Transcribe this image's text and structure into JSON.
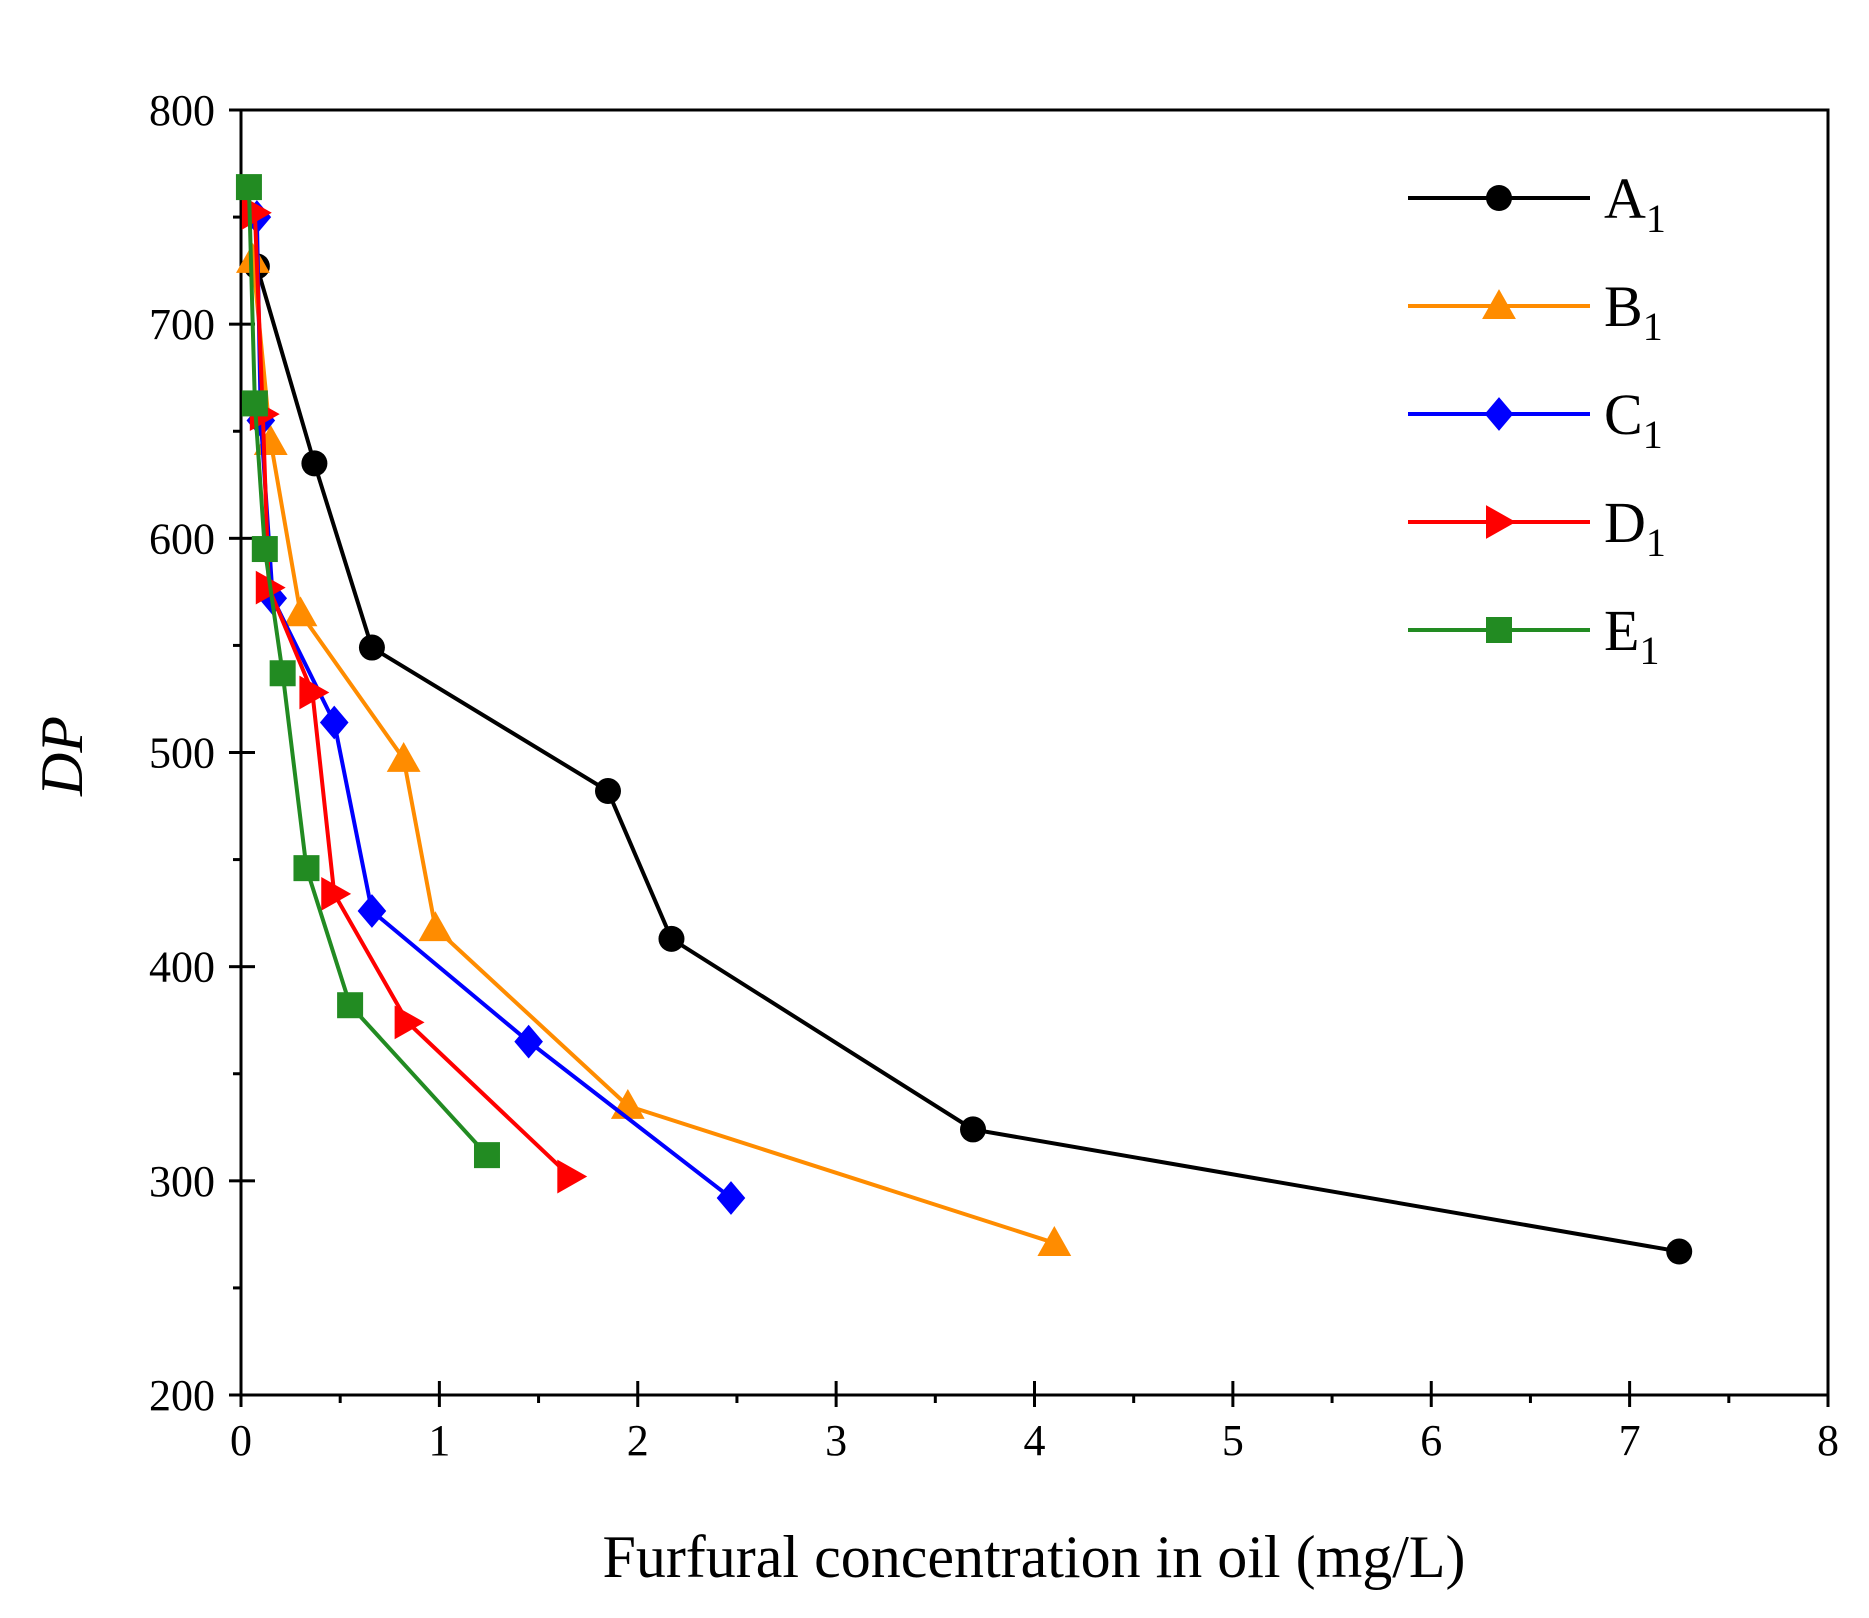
{
  "chart_data": {
    "type": "line",
    "xlabel": "Furfural concentration in oil (mg/L)",
    "ylabel": "DP",
    "xlim": [
      0,
      8
    ],
    "ylim": [
      200,
      800
    ],
    "xticks": [
      0,
      1,
      2,
      3,
      4,
      5,
      6,
      7,
      8
    ],
    "yticks": [
      200,
      300,
      400,
      500,
      600,
      700,
      800
    ],
    "grid": false,
    "legend_position": "top-right",
    "series": [
      {
        "name": "A",
        "subscript": "1",
        "color": "#000000",
        "marker": "circle",
        "x": [
          0.08,
          0.37,
          0.66,
          1.85,
          2.17,
          3.69,
          7.25
        ],
        "y": [
          727,
          635,
          549,
          482,
          413,
          324,
          267
        ]
      },
      {
        "name": "B",
        "subscript": "1",
        "color": "#FF8C00",
        "marker": "triangle-up",
        "x": [
          0.06,
          0.15,
          0.3,
          0.82,
          0.98,
          1.95,
          4.1
        ],
        "y": [
          730,
          645,
          565,
          497,
          418,
          335,
          271
        ]
      },
      {
        "name": "C",
        "subscript": "1",
        "color": "#0000FF",
        "marker": "diamond",
        "x": [
          0.08,
          0.1,
          0.16,
          0.47,
          0.66,
          1.45,
          2.47
        ],
        "y": [
          750,
          655,
          572,
          514,
          426,
          365,
          292
        ]
      },
      {
        "name": "D",
        "subscript": "1",
        "color": "#FF0000",
        "marker": "triangle-right",
        "x": [
          0.07,
          0.11,
          0.14,
          0.36,
          0.47,
          0.84,
          1.66
        ],
        "y": [
          752,
          658,
          577,
          528,
          434,
          374,
          302
        ]
      },
      {
        "name": "E",
        "subscript": "1",
        "color": "#228B22",
        "marker": "square",
        "x": [
          0.04,
          0.07,
          0.12,
          0.21,
          0.33,
          0.55,
          1.24
        ],
        "y": [
          764,
          663,
          595,
          537,
          446,
          382,
          312
        ]
      }
    ]
  }
}
